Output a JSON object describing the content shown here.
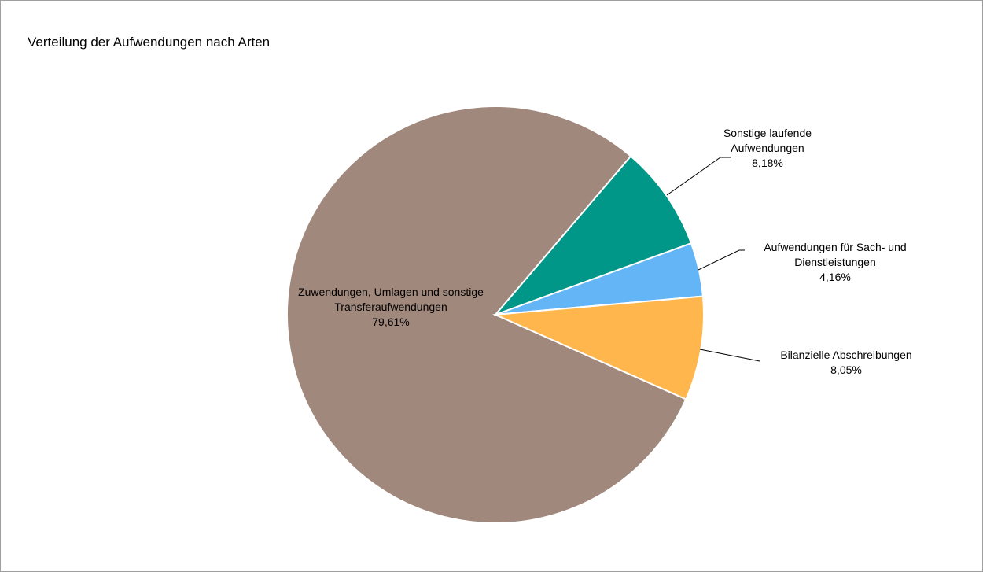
{
  "chart_data": {
    "type": "pie",
    "title": "Verteilung der Aufwendungen nach Arten",
    "categories": [
      "Zuwendungen, Umlagen und sonstige Transferaufwendungen",
      "Sonstige laufende Aufwendungen",
      "Aufwendungen für Sach- und Dienstleistungen",
      "Bilanzielle Abschreibungen"
    ],
    "values": [
      79.61,
      8.18,
      4.16,
      8.05
    ],
    "value_labels": [
      "79,61%",
      "8,18%",
      "4,16%",
      "8,05%"
    ],
    "colors": [
      "#a0887c",
      "#009688",
      "#64b5f6",
      "#ffb74d"
    ]
  }
}
